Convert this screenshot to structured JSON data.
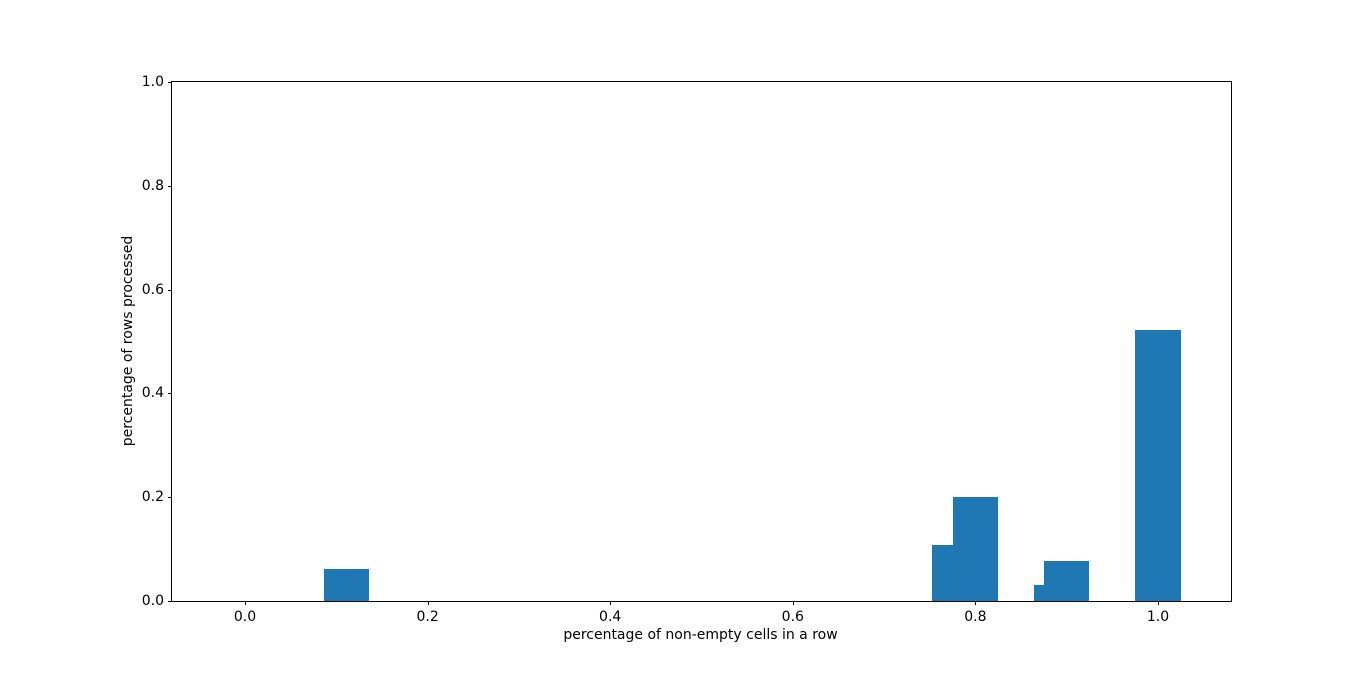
{
  "figure": {
    "background_color": "#ffffff",
    "axis_color": "#000000",
    "bar_color": "#1f77b4"
  },
  "chart_data": {
    "type": "bar",
    "title": "",
    "xlabel": "percentage of non-empty cells in a row",
    "ylabel": "percentage of rows processed",
    "x": [
      0.1111,
      0.7778,
      0.8,
      0.8889,
      0.9,
      1.0
    ],
    "values": [
      0.0615,
      0.1077,
      0.2,
      0.0308,
      0.0769,
      0.5231
    ],
    "bar_width": 0.05,
    "xlim": [
      -0.08,
      1.08
    ],
    "ylim": [
      0.0,
      1.0
    ],
    "xticks": [
      0.0,
      0.2,
      0.4,
      0.6,
      0.8,
      1.0
    ],
    "yticks": [
      0.0,
      0.2,
      0.4,
      0.6,
      0.8,
      1.0
    ],
    "xtick_labels": [
      "0.0",
      "0.2",
      "0.4",
      "0.6",
      "0.8",
      "1.0"
    ],
    "ytick_labels": [
      "0.0",
      "0.2",
      "0.4",
      "0.6",
      "0.8",
      "1.0"
    ],
    "grid": false,
    "legend": "none"
  }
}
